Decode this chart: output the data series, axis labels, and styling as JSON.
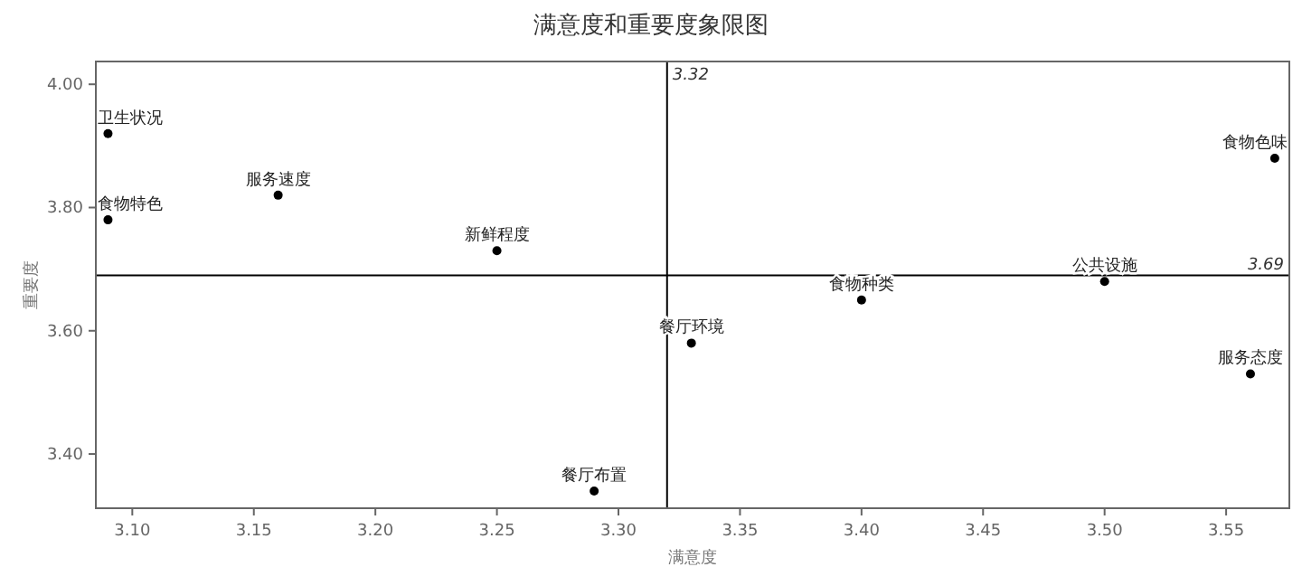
{
  "chart_data": {
    "type": "scatter",
    "title": "满意度和重要度象限图",
    "xlabel": "满意度",
    "ylabel": "重要度",
    "x": [
      3.09,
      3.09,
      3.16,
      3.25,
      3.29,
      3.33,
      3.4,
      3.5,
      3.56,
      3.57
    ],
    "series": [
      {
        "color": "#000000",
        "values": [
          3.92,
          3.78,
          3.82,
          3.73,
          3.34,
          3.58,
          3.65,
          3.68,
          3.53,
          3.88
        ]
      }
    ],
    "annotations": [
      {
        "text": "卫生状况",
        "x": 3.09,
        "y": 3.92
      },
      {
        "text": "食物特色",
        "x": 3.09,
        "y": 3.78
      },
      {
        "text": "服务速度",
        "x": 3.16,
        "y": 3.82
      },
      {
        "text": "新鲜程度",
        "x": 3.25,
        "y": 3.73
      },
      {
        "text": "餐厅布置",
        "x": 3.29,
        "y": 3.34
      },
      {
        "text": "餐厅环境",
        "x": 3.33,
        "y": 3.58
      },
      {
        "text": "食物种类",
        "x": 3.4,
        "y": 3.65
      },
      {
        "text": "公共设施",
        "x": 3.5,
        "y": 3.68
      },
      {
        "text": "服务态度",
        "x": 3.56,
        "y": 3.53
      },
      {
        "text": "食物色味",
        "x": 3.57,
        "y": 3.88
      }
    ],
    "ref_lines": [
      {
        "axis": "x",
        "value": 3.32,
        "label": "3.32",
        "color": "#000000"
      },
      {
        "axis": "y",
        "value": 3.69,
        "label": "3.69",
        "color": "#000000"
      }
    ],
    "xlim": [
      3.085,
      3.576
    ],
    "ylim": [
      3.312,
      4.037
    ],
    "xticks": [
      {
        "value": 3.1,
        "label": "3.10"
      },
      {
        "value": 3.15,
        "label": "3.15"
      },
      {
        "value": 3.2,
        "label": "3.20"
      },
      {
        "value": 3.25,
        "label": "3.25"
      },
      {
        "value": 3.3,
        "label": "3.30"
      },
      {
        "value": 3.35,
        "label": "3.35"
      },
      {
        "value": 3.4,
        "label": "3.40"
      },
      {
        "value": 3.45,
        "label": "3.45"
      },
      {
        "value": 3.5,
        "label": "3.50"
      },
      {
        "value": 3.55,
        "label": "3.55"
      }
    ],
    "yticks": [
      {
        "value": 3.4,
        "label": "3.40"
      },
      {
        "value": 3.6,
        "label": "3.60"
      },
      {
        "value": 3.8,
        "label": "3.80"
      },
      {
        "value": 4.0,
        "label": "4.00"
      }
    ],
    "marker": "circle",
    "grid": false
  }
}
